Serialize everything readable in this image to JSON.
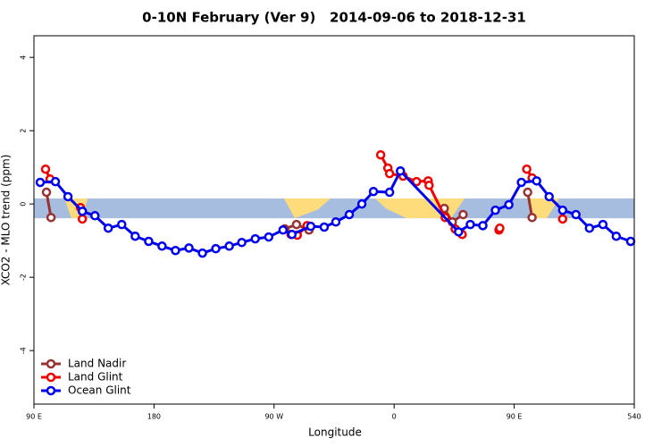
{
  "chart_data": {
    "type": "line",
    "title": "0-10N February (Ver 9)   2014-09-06 to 2018-12-31",
    "x_label": "Longitude",
    "y_label": "XCO2 - MLO trend (ppm)",
    "xlim": [
      90,
      540
    ],
    "xticks": [
      {
        "value": 90,
        "label": "90 E"
      },
      180,
      {
        "value": 270,
        "label": "90 W"
      },
      {
        "value": 360,
        "label": "0"
      },
      {
        "value": 450,
        "label": "90 E"
      },
      540
    ],
    "ylim": [
      -5.46,
      4.59
    ],
    "yticks": [
      -4,
      -2,
      0,
      2,
      4
    ],
    "band": [
      -0.39,
      0.15
    ],
    "legend": "bottom-left",
    "series": [
      {
        "name": "Land Nadir",
        "color": "#993333",
        "x": [
          99.4,
          102.8,
          null,
          278.0,
          286.8,
          296.2,
          null,
          397.6,
          403.6,
          411.7,
          null,
          460.1,
          463.4
        ],
        "values": [
          0.32,
          -0.37,
          null,
          -0.68,
          -0.56,
          -0.71,
          null,
          -0.12,
          -0.49,
          -0.29,
          null,
          0.32,
          -0.37
        ]
      },
      {
        "name": "Land Glint",
        "color": "#ee0000",
        "x": [
          98.7,
          102.1,
          null,
          124.9,
          126.3,
          null,
          282.7,
          287.4,
          294.8,
          null,
          349.9,
          355.3,
          356.6,
          366.7,
          376.8,
          385.5,
          386.2,
          398.3,
          405.7,
          411.0,
          null,
          438.6,
          439.2,
          null,
          459.4,
          463.4,
          null,
          486.3
        ],
        "values": [
          0.95,
          0.68,
          null,
          -0.1,
          -0.41,
          null,
          -0.83,
          -0.85,
          -0.59,
          null,
          1.34,
          0.98,
          0.83,
          0.76,
          0.61,
          0.63,
          0.51,
          -0.37,
          -0.68,
          -0.83,
          null,
          -0.71,
          -0.66,
          null,
          0.95,
          0.71,
          null,
          -0.41
        ]
      },
      {
        "name": "Ocean Glint",
        "color": "#0000ee",
        "x": [
          94.7,
          106.1,
          115.5,
          126.3,
          135.7,
          145.7,
          155.8,
          165.9,
          176.0,
          186.0,
          196.1,
          206.2,
          216.3,
          226.3,
          236.4,
          245.8,
          255.9,
          266.0,
          276.7,
          283.4,
          297.5,
          307.6,
          316.3,
          326.4,
          335.8,
          344.5,
          356.6,
          364.7,
          408.3,
          417.1,
          426.5,
          435.9,
          446.0,
          455.4,
          466.8,
          476.2,
          486.3,
          496.3,
          506.4,
          516.5,
          526.5,
          537.3
        ],
        "values": [
          0.59,
          0.61,
          0.2,
          -0.2,
          -0.32,
          -0.66,
          -0.56,
          -0.88,
          -1.02,
          -1.15,
          -1.27,
          -1.2,
          -1.34,
          -1.22,
          -1.15,
          -1.05,
          -0.95,
          -0.9,
          -0.71,
          -0.83,
          -0.61,
          -0.63,
          -0.49,
          -0.29,
          0.0,
          0.34,
          0.32,
          0.9,
          -0.76,
          -0.56,
          -0.59,
          -0.17,
          -0.02,
          0.59,
          0.63,
          0.2,
          -0.17,
          -0.29,
          -0.66,
          -0.56,
          -0.88,
          -1.02
        ]
      }
    ]
  }
}
